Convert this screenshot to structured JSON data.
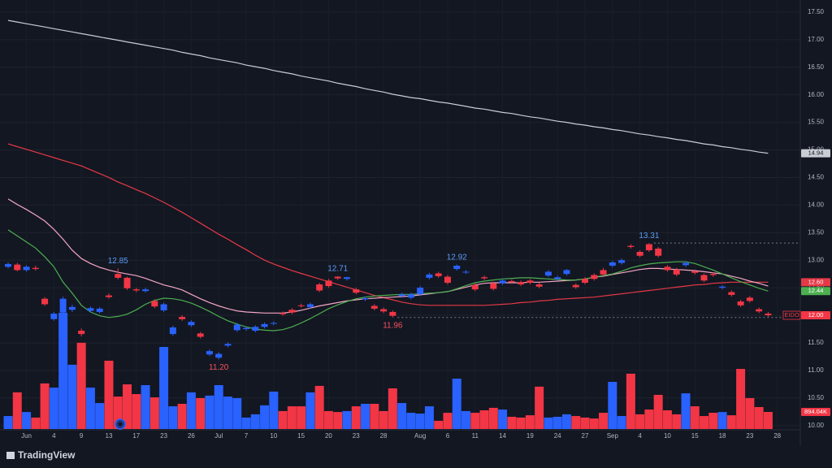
{
  "brand": "TradingView",
  "chart_data": {
    "type": "candlestick",
    "symbol": "EIDO",
    "up_color": "#2962ff",
    "down_color": "#f23645",
    "grid": true,
    "ylim": [
      9.76,
      17.72
    ],
    "yticks": [
      {
        "value": 10,
        "label": "10.00"
      },
      {
        "value": 10.5,
        "label": "10.50"
      },
      {
        "value": 11,
        "label": "11.00"
      },
      {
        "value": 11.5,
        "label": "11.50"
      },
      {
        "value": 12,
        "label": "12.00"
      },
      {
        "value": 12.5,
        "label": "12.50"
      },
      {
        "value": 13,
        "label": "13.00"
      },
      {
        "value": 13.5,
        "label": "13.50"
      },
      {
        "value": 14,
        "label": "14.00"
      },
      {
        "value": 14.5,
        "label": "14.50"
      },
      {
        "value": 15,
        "label": "15.00"
      },
      {
        "value": 15.5,
        "label": "15.50"
      },
      {
        "value": 16,
        "label": "16.00"
      },
      {
        "value": 16.5,
        "label": "16.50"
      },
      {
        "value": 17,
        "label": "17.00"
      },
      {
        "value": 17.5,
        "label": "17.50"
      }
    ],
    "categories": [
      null,
      null,
      "Jun",
      null,
      null,
      "4",
      null,
      null,
      "9",
      null,
      null,
      "13",
      null,
      null,
      "17",
      null,
      null,
      "23",
      null,
      null,
      "26",
      null,
      null,
      "Jul",
      null,
      null,
      "7",
      null,
      null,
      "10",
      null,
      null,
      "15",
      null,
      null,
      "20",
      null,
      null,
      "23",
      null,
      null,
      "28",
      null,
      null,
      null,
      "Aug",
      null,
      null,
      "6",
      null,
      null,
      "11",
      null,
      null,
      "14",
      null,
      null,
      "19",
      null,
      null,
      "24",
      null,
      null,
      "27",
      null,
      null,
      "Sep",
      null,
      null,
      "4",
      null,
      null,
      "10",
      null,
      null,
      "15",
      null,
      null,
      "18",
      null,
      null,
      "23",
      null,
      null,
      "28"
    ],
    "open": [
      12.88,
      12.92,
      12.82,
      12.86,
      12.3,
      11.93,
      12.05,
      12.1,
      11.72,
      12.08,
      12.06,
      12.36,
      12.75,
      12.68,
      12.47,
      12.44,
      12.26,
      12.09,
      11.66,
      11.97,
      11.82,
      11.67,
      11.29,
      11.23,
      11.45,
      11.73,
      11.75,
      11.72,
      11.79,
      11.85,
      12.04,
      12.1,
      12.18,
      12.15,
      12.56,
      12.63,
      12.7,
      12.66,
      12.47,
      12.29,
      12.17,
      12.11,
      12.06,
      12.35,
      12.32,
      12.38,
      12.68,
      12.76,
      12.7,
      12.84,
      12.78,
      12.55,
      12.69,
      12.58,
      12.58,
      12.62,
      12.6,
      12.63,
      12.56,
      12.72,
      12.66,
      12.75,
      12.55,
      12.66,
      12.73,
      12.82,
      12.9,
      12.95,
      13.26,
      13.15,
      13.29,
      13.21,
      12.88,
      12.83,
      12.91,
      12.8,
      12.73,
      12.75,
      12.5,
      12.42,
      12.25,
      12.32,
      12.11,
      12.03,
      null
    ],
    "high": [
      12.96,
      12.95,
      12.91,
      12.9,
      12.33,
      12.06,
      12.34,
      12.19,
      11.76,
      12.16,
      12.15,
      12.4,
      12.85,
      12.7,
      12.5,
      12.5,
      12.29,
      12.23,
      11.81,
      12.0,
      11.91,
      11.7,
      11.38,
      11.33,
      11.51,
      11.86,
      11.8,
      11.82,
      11.87,
      11.89,
      12.07,
      12.13,
      12.21,
      12.23,
      12.59,
      12.66,
      12.71,
      12.7,
      12.5,
      12.34,
      12.2,
      12.14,
      12.09,
      12.41,
      12.41,
      12.53,
      12.77,
      12.79,
      12.73,
      12.92,
      12.82,
      12.58,
      12.72,
      12.61,
      12.66,
      12.65,
      12.63,
      12.66,
      12.59,
      12.82,
      12.72,
      12.84,
      12.58,
      12.69,
      12.76,
      12.86,
      12.99,
      13.03,
      13.29,
      13.18,
      13.31,
      13.24,
      12.91,
      12.86,
      12.98,
      12.83,
      12.76,
      12.78,
      12.55,
      12.45,
      12.28,
      12.35,
      12.14,
      12.06,
      null
    ],
    "low": [
      12.85,
      12.8,
      12.79,
      12.81,
      12.17,
      11.9,
      12.02,
      12.06,
      11.62,
      12.05,
      12.03,
      12.3,
      12.65,
      12.46,
      12.42,
      12.41,
      12.13,
      12.06,
      11.63,
      11.9,
      11.79,
      11.58,
      11.26,
      11.2,
      11.42,
      11.7,
      11.72,
      11.69,
      11.76,
      11.82,
      11.99,
      12.02,
      12.14,
      12.12,
      12.42,
      12.5,
      12.64,
      12.63,
      12.38,
      12.26,
      12.09,
      12.04,
      11.96,
      12.32,
      12.29,
      12.35,
      12.65,
      12.68,
      12.56,
      12.81,
      12.75,
      12.44,
      12.64,
      12.45,
      12.55,
      12.57,
      12.53,
      12.56,
      12.49,
      12.69,
      12.63,
      12.72,
      12.48,
      12.56,
      12.63,
      12.71,
      12.87,
      12.92,
      13.21,
      13.05,
      13.15,
      13.05,
      12.79,
      12.71,
      12.88,
      12.74,
      12.6,
      12.7,
      12.47,
      12.34,
      12.15,
      12.23,
      12.04,
      11.97,
      null
    ],
    "close": [
      12.93,
      12.82,
      12.88,
      12.84,
      12.2,
      12.03,
      12.3,
      12.15,
      11.66,
      12.13,
      12.12,
      12.33,
      12.68,
      12.49,
      12.45,
      12.47,
      12.16,
      12.2,
      11.78,
      11.93,
      11.88,
      11.61,
      11.35,
      11.3,
      11.48,
      11.83,
      11.77,
      11.79,
      11.84,
      11.86,
      12.02,
      12.05,
      12.17,
      12.2,
      12.45,
      12.53,
      12.67,
      12.69,
      12.41,
      12.31,
      12.12,
      12.07,
      11.99,
      12.38,
      12.38,
      12.5,
      12.74,
      12.71,
      12.59,
      12.9,
      12.79,
      12.47,
      12.67,
      12.48,
      12.63,
      12.6,
      12.56,
      12.59,
      12.52,
      12.79,
      12.69,
      12.82,
      12.51,
      12.59,
      12.66,
      12.74,
      12.96,
      13.0,
      13.24,
      13.08,
      13.18,
      13.08,
      12.82,
      12.74,
      12.95,
      12.77,
      12.63,
      12.73,
      12.52,
      12.37,
      12.18,
      12.26,
      12.07,
      12.0,
      null
    ],
    "close_label": "12.00",
    "volume": {
      "values": [
        680000,
        1920000,
        890000,
        600000,
        2390000,
        2170000,
        6090000,
        3370000,
        4520000,
        2170000,
        1360000,
        3580000,
        1700000,
        2340000,
        1830000,
        2300000,
        1660000,
        4300000,
        1190000,
        1320000,
        1920000,
        1620000,
        1750000,
        2300000,
        1700000,
        1620000,
        600000,
        770000,
        1240000,
        1960000,
        940000,
        1190000,
        1190000,
        1920000,
        2260000,
        940000,
        890000,
        940000,
        1190000,
        1320000,
        1320000,
        940000,
        2130000,
        1360000,
        850000,
        810000,
        1190000,
        430000,
        850000,
        2640000,
        940000,
        850000,
        980000,
        1110000,
        1020000,
        640000,
        600000,
        720000,
        2220000,
        600000,
        640000,
        770000,
        680000,
        600000,
        550000,
        850000,
        2470000,
        680000,
        2900000,
        770000,
        1020000,
        1790000,
        980000,
        770000,
        1870000,
        1190000,
        680000,
        850000,
        890000,
        720000,
        3150000,
        1620000,
        1150000,
        894040,
        null
      ],
      "last_label": "894.04K"
    },
    "high_labels": [
      12.85,
      12.71,
      12.92,
      13.31
    ],
    "low_labels": [
      {
        "value": 11.2,
        "label": "11.20"
      },
      11.96
    ],
    "series": [
      {
        "color": "#c9ccd4",
        "last_label": "14.94",
        "values": [
          17.35,
          17.32,
          17.29,
          17.26,
          17.23,
          17.2,
          17.17,
          17.14,
          17.11,
          17.08,
          17.05,
          17.02,
          16.99,
          16.96,
          16.93,
          16.9,
          16.87,
          16.84,
          16.81,
          16.77,
          16.74,
          16.71,
          16.67,
          16.64,
          16.61,
          16.58,
          16.54,
          16.51,
          16.48,
          16.44,
          16.41,
          16.38,
          16.34,
          16.31,
          16.28,
          16.25,
          16.21,
          16.18,
          16.15,
          16.11,
          16.08,
          16.05,
          16.01,
          15.98,
          15.95,
          15.93,
          15.9,
          15.87,
          15.85,
          15.82,
          15.79,
          15.76,
          15.74,
          15.71,
          15.68,
          15.66,
          15.63,
          15.6,
          15.58,
          15.55,
          15.52,
          15.5,
          15.47,
          15.45,
          15.42,
          15.4,
          15.37,
          15.35,
          15.32,
          15.29,
          15.27,
          15.24,
          15.22,
          15.19,
          15.17,
          15.14,
          15.11,
          15.09,
          15.06,
          15.04,
          15.01,
          14.99,
          14.96,
          14.94,
          null
        ]
      },
      {
        "color": "#e53946",
        "last_label": "12.60",
        "values": [
          15.11,
          15.06,
          15.01,
          14.96,
          14.91,
          14.86,
          14.81,
          14.76,
          14.71,
          14.64,
          14.57,
          14.5,
          14.42,
          14.35,
          14.28,
          14.21,
          14.13,
          14.05,
          13.96,
          13.87,
          13.77,
          13.67,
          13.57,
          13.47,
          13.38,
          13.28,
          13.19,
          13.09,
          13.0,
          12.93,
          12.87,
          12.81,
          12.76,
          12.71,
          12.66,
          12.61,
          12.56,
          12.51,
          12.46,
          12.41,
          12.36,
          12.32,
          12.28,
          12.24,
          12.21,
          12.19,
          12.18,
          12.18,
          12.18,
          12.18,
          12.18,
          12.18,
          12.18,
          12.19,
          12.2,
          12.21,
          12.23,
          12.24,
          12.26,
          12.27,
          12.29,
          12.3,
          12.31,
          12.32,
          12.33,
          12.35,
          12.37,
          12.39,
          12.41,
          12.43,
          12.45,
          12.47,
          12.49,
          12.51,
          12.53,
          12.55,
          12.56,
          12.58,
          12.59,
          12.6,
          12.6,
          12.6,
          12.6,
          12.6,
          null
        ]
      },
      {
        "color": "#f3a6c4",
        "values": [
          14.11,
          14.01,
          13.92,
          13.82,
          13.71,
          13.56,
          13.38,
          13.18,
          13.03,
          12.94,
          12.87,
          12.82,
          12.78,
          12.75,
          12.72,
          12.67,
          12.61,
          12.55,
          12.51,
          12.46,
          12.38,
          12.3,
          12.23,
          12.17,
          12.12,
          12.08,
          12.06,
          12.05,
          12.04,
          12.04,
          12.04,
          12.06,
          12.09,
          12.13,
          12.17,
          12.2,
          12.23,
          12.26,
          12.28,
          12.3,
          12.31,
          12.32,
          12.33,
          12.34,
          12.35,
          12.37,
          12.39,
          12.41,
          12.43,
          12.47,
          12.51,
          12.55,
          12.58,
          12.59,
          12.59,
          12.59,
          12.59,
          12.6,
          12.6,
          12.61,
          12.62,
          12.63,
          12.64,
          12.66,
          12.69,
          12.71,
          12.74,
          12.77,
          12.8,
          12.83,
          12.85,
          12.85,
          12.84,
          12.83,
          12.82,
          12.81,
          12.79,
          12.77,
          12.75,
          12.71,
          12.67,
          12.62,
          12.58,
          12.53,
          null
        ]
      },
      {
        "color": "#4caf50",
        "last_label": "12.44",
        "values": [
          13.55,
          13.44,
          13.33,
          13.22,
          13.06,
          12.88,
          12.6,
          12.4,
          12.18,
          12.06,
          11.99,
          11.96,
          11.98,
          12.02,
          12.1,
          12.2,
          12.27,
          12.31,
          12.3,
          12.27,
          12.22,
          12.15,
          12.07,
          11.98,
          11.9,
          11.84,
          11.79,
          11.75,
          11.73,
          11.72,
          11.74,
          11.79,
          11.86,
          11.94,
          12.03,
          12.12,
          12.19,
          12.25,
          12.3,
          12.33,
          12.35,
          12.36,
          12.37,
          12.38,
          12.38,
          12.39,
          12.4,
          12.41,
          12.43,
          12.48,
          12.54,
          12.59,
          12.62,
          12.64,
          12.66,
          12.67,
          12.68,
          12.68,
          12.67,
          12.66,
          12.65,
          12.64,
          12.64,
          12.66,
          12.69,
          12.72,
          12.75,
          12.8,
          12.86,
          12.9,
          12.93,
          12.95,
          12.96,
          12.97,
          12.97,
          12.94,
          12.88,
          12.82,
          12.75,
          12.68,
          12.61,
          12.55,
          12.49,
          12.44,
          null
        ]
      }
    ]
  }
}
